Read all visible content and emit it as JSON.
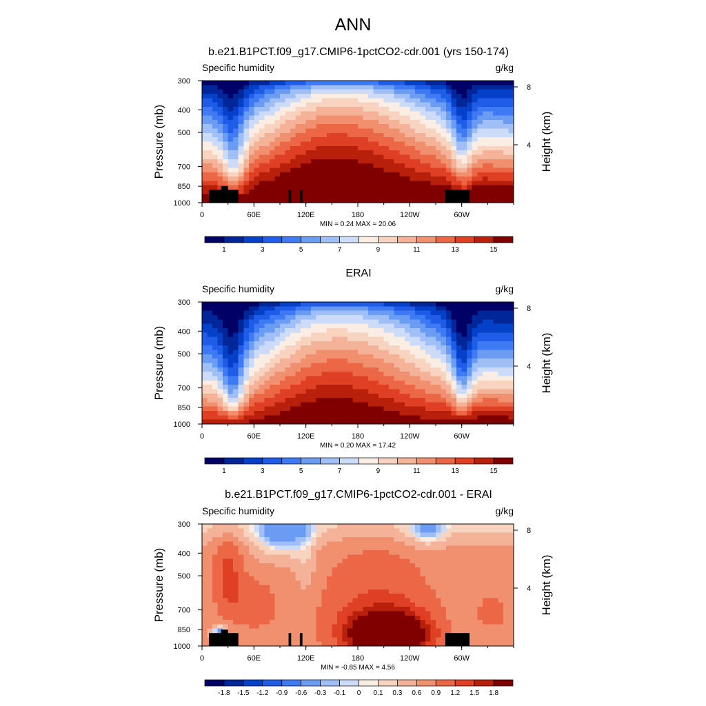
{
  "figure": {
    "title": "ANN"
  },
  "colors": {
    "abs": [
      "#000066",
      "#002699",
      "#0440c8",
      "#1f5ce8",
      "#3d7af4",
      "#6a9cf4",
      "#9fbff6",
      "#ccdcf8",
      "#faeee4",
      "#f8d4c0",
      "#f4b298",
      "#f0906f",
      "#ec6746",
      "#df3f23",
      "#b8200b",
      "#800000"
    ],
    "diff": [
      "#000066",
      "#002699",
      "#0440c8",
      "#1f5ce8",
      "#3d7af4",
      "#6a9cf4",
      "#9fbff6",
      "#ccdcf8",
      "#faeee4",
      "#f8d4c0",
      "#f4b298",
      "#f0906f",
      "#ec6746",
      "#df3f23",
      "#b8200b",
      "#800000"
    ],
    "land": "#000000"
  },
  "chart_data": [
    {
      "type": "heatmap",
      "title": "b.e21.B1PCT.f09_g17.CMIP6-1pctCO2-cdr.001 (yrs 150-174)",
      "left_label": "Specific humidity",
      "right_label": "g/kg",
      "ylabel": "Pressure (mb)",
      "y2label": "Height (km)",
      "x_ticks": [
        "0",
        "60E",
        "120E",
        "180",
        "120W",
        "60W"
      ],
      "x_tick_values": [
        0,
        60,
        120,
        180,
        240,
        300
      ],
      "xlim": [
        0,
        360
      ],
      "y_ticks": [
        "300",
        "400",
        "500",
        "700",
        "850",
        "1000"
      ],
      "y_tick_values": [
        300,
        400,
        500,
        700,
        850,
        1000
      ],
      "ylim": [
        300,
        1000
      ],
      "y_scale": "log",
      "y2_ticks": [
        "8",
        "4"
      ],
      "y2_tick_values": [
        8,
        4
      ],
      "minmax_text": "MIN =   0.24  MAX =  20.06",
      "min": 0.24,
      "max": 20.06,
      "colorbar_labels": [
        "1",
        "3",
        "5",
        "7",
        "9",
        "11",
        "13",
        "15"
      ],
      "colorbar_label_positions": [
        1,
        3,
        5,
        7,
        9,
        11,
        13,
        15
      ],
      "field": "abs",
      "land": true
    },
    {
      "type": "heatmap",
      "title": "ERAI",
      "left_label": "Specific humidity",
      "right_label": "g/kg",
      "ylabel": "Pressure (mb)",
      "y2label": "Height (km)",
      "x_ticks": [
        "0",
        "60E",
        "120E",
        "180",
        "120W",
        "60W"
      ],
      "x_tick_values": [
        0,
        60,
        120,
        180,
        240,
        300
      ],
      "xlim": [
        0,
        360
      ],
      "y_ticks": [
        "300",
        "400",
        "500",
        "700",
        "850",
        "1000"
      ],
      "y_tick_values": [
        300,
        400,
        500,
        700,
        850,
        1000
      ],
      "ylim": [
        300,
        1000
      ],
      "y_scale": "log",
      "y2_ticks": [
        "8",
        "4"
      ],
      "y2_tick_values": [
        8,
        4
      ],
      "minmax_text": "MIN =   0.20  MAX =  17.42",
      "min": 0.2,
      "max": 17.42,
      "colorbar_labels": [
        "1",
        "3",
        "5",
        "7",
        "9",
        "11",
        "13",
        "15"
      ],
      "colorbar_label_positions": [
        1,
        3,
        5,
        7,
        9,
        11,
        13,
        15
      ],
      "field": "abs",
      "land": false
    },
    {
      "type": "heatmap",
      "title": "b.e21.B1PCT.f09_g17.CMIP6-1pctCO2-cdr.001 - ERAI",
      "left_label": "Specific humidity",
      "right_label": "g/kg",
      "ylabel": "Pressure (mb)",
      "y2label": "Height (km)",
      "x_ticks": [
        "0",
        "60E",
        "120E",
        "180",
        "120W",
        "60W"
      ],
      "x_tick_values": [
        0,
        60,
        120,
        180,
        240,
        300
      ],
      "xlim": [
        0,
        360
      ],
      "y_ticks": [
        "300",
        "400",
        "500",
        "700",
        "850",
        "1000"
      ],
      "y_tick_values": [
        300,
        400,
        500,
        700,
        850,
        1000
      ],
      "ylim": [
        300,
        1000
      ],
      "y_scale": "log",
      "y2_ticks": [
        "8",
        "4"
      ],
      "y2_tick_values": [
        8,
        4
      ],
      "minmax_text": "MIN =  -0.85  MAX =   4.56",
      "min": -0.85,
      "max": 4.56,
      "colorbar_labels": [
        "-1.8",
        "-1.5",
        "-1.2",
        "-0.9",
        "-0.6",
        "-0.3",
        "-0.1",
        "0",
        "0.1",
        "0.3",
        "0.6",
        "0.9",
        "1.2",
        "1.5",
        "1.8"
      ],
      "colorbar_label_positions": [
        -1.8,
        -1.5,
        -1.2,
        -0.9,
        -0.6,
        -0.3,
        -0.1,
        0,
        0.1,
        0.3,
        0.6,
        0.9,
        1.2,
        1.5,
        1.8
      ],
      "field": "diff",
      "land": true
    }
  ]
}
